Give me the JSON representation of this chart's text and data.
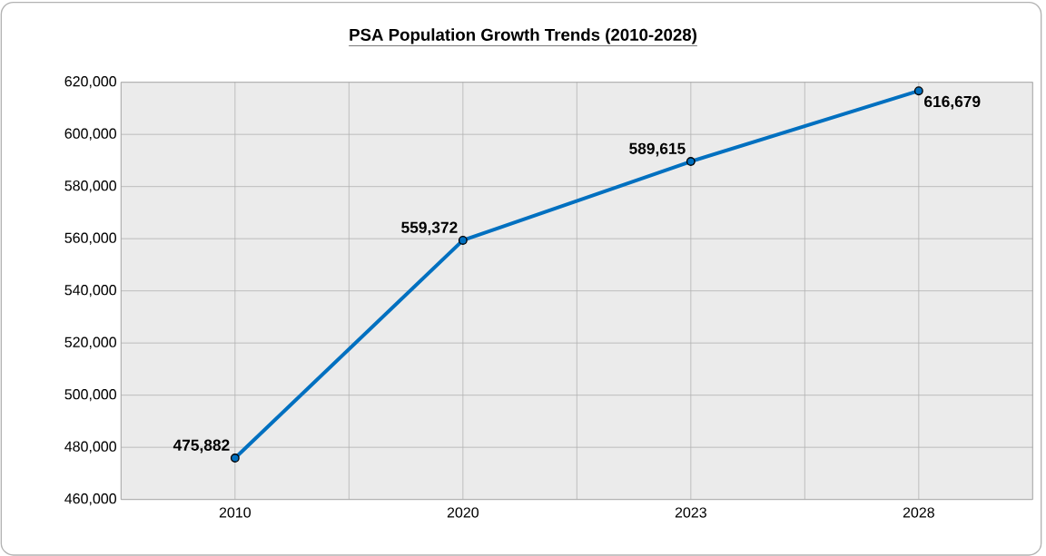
{
  "chart_data": {
    "type": "line",
    "title": "PSA Population Growth Trends (2010-2028)",
    "categories": [
      "2010",
      "2020",
      "2023",
      "2028"
    ],
    "series": [
      {
        "color": "#0070c0",
        "values": [
          475882,
          559372,
          589615,
          616679
        ],
        "value_labels": [
          "475,882",
          "559,372",
          "589,615",
          "616,679"
        ]
      }
    ],
    "ylim": [
      460000,
      620000
    ],
    "yticks": [
      {
        "value": 460000,
        "label": "460,000"
      },
      {
        "value": 480000,
        "label": "480,000"
      },
      {
        "value": 500000,
        "label": "500,000"
      },
      {
        "value": 520000,
        "label": "520,000"
      },
      {
        "value": 540000,
        "label": "540,000"
      },
      {
        "value": 560000,
        "label": "560,000"
      },
      {
        "value": 580000,
        "label": "580,000"
      },
      {
        "value": 600000,
        "label": "600,000"
      },
      {
        "value": 620000,
        "label": "620,000"
      }
    ],
    "grid": true,
    "marker": "circle",
    "line_style": "solid"
  }
}
